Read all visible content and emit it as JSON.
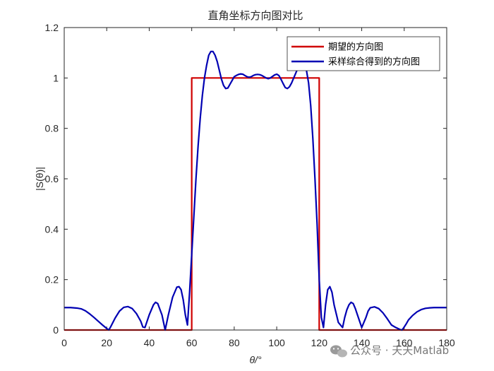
{
  "chart_data": {
    "type": "line",
    "title": "直角坐标方向图对比",
    "xlabel": "θ/°",
    "ylabel": "|S(θ)|",
    "xlim": [
      0,
      180
    ],
    "ylim": [
      0,
      1.2
    ],
    "xticks": [
      0,
      20,
      40,
      60,
      80,
      100,
      120,
      140,
      160,
      180
    ],
    "yticks": [
      0,
      0.2,
      0.4,
      0.6,
      0.8,
      1,
      1.2
    ],
    "xtick_labels": [
      "0",
      "20",
      "40",
      "60",
      "80",
      "100",
      "120",
      "140",
      "160",
      "180"
    ],
    "ytick_labels": [
      "0",
      "0.2",
      "0.4",
      "0.6",
      "0.8",
      "1",
      "1.2"
    ],
    "grid": false,
    "legend_position": "top-right",
    "series": [
      {
        "name": "期望的方向图",
        "color": "#d00000",
        "x": [
          0,
          59.5,
          60,
          60,
          120,
          120,
          120.5,
          180
        ],
        "y": [
          0,
          0,
          0,
          1,
          1,
          0,
          0,
          0
        ]
      },
      {
        "name": "采样综合得到的方向图",
        "color": "#0000b3",
        "x": [
          0,
          3,
          6,
          8,
          10,
          12,
          14,
          16,
          18,
          20,
          21,
          22,
          24,
          26,
          28,
          30,
          32,
          34,
          36,
          37,
          38,
          40,
          42,
          43,
          44,
          46,
          47.5,
          49,
          51,
          53,
          54,
          55,
          56,
          57,
          58,
          59,
          60,
          61,
          62,
          63,
          64,
          65,
          66,
          67,
          68,
          69,
          70,
          71,
          72,
          73,
          74,
          75,
          76,
          77,
          78,
          79,
          80,
          81,
          82,
          83,
          84,
          85,
          86,
          87,
          88,
          89,
          90,
          91,
          92,
          93,
          94,
          95,
          96,
          97,
          98,
          99,
          100,
          101,
          102,
          103,
          104,
          105,
          106,
          107,
          108,
          109,
          110,
          111,
          112,
          113,
          114,
          115,
          116,
          117,
          118,
          119,
          120,
          121,
          122,
          123,
          124,
          125,
          126,
          127,
          129,
          131,
          132,
          133,
          134,
          135,
          136,
          137,
          138,
          140,
          142,
          143,
          144,
          146,
          148,
          150,
          152,
          154,
          156,
          158,
          159,
          160,
          161,
          162,
          164,
          166,
          168,
          170,
          172,
          174,
          176,
          178,
          180
        ],
        "y": [
          0.089,
          0.089,
          0.087,
          0.084,
          0.076,
          0.064,
          0.05,
          0.035,
          0.02,
          0.006,
          0.0,
          0.015,
          0.048,
          0.075,
          0.09,
          0.093,
          0.085,
          0.065,
          0.035,
          0.012,
          0.01,
          0.06,
          0.1,
          0.11,
          0.105,
          0.06,
          0.0,
          0.06,
          0.13,
          0.17,
          0.172,
          0.16,
          0.12,
          0.06,
          0.02,
          0.15,
          0.3,
          0.45,
          0.6,
          0.73,
          0.84,
          0.93,
          1.0,
          1.05,
          1.09,
          1.105,
          1.105,
          1.09,
          1.065,
          1.03,
          0.995,
          0.97,
          0.958,
          0.96,
          0.975,
          0.99,
          1.005,
          1.01,
          1.014,
          1.016,
          1.015,
          1.01,
          1.005,
          1.003,
          1.005,
          1.01,
          1.013,
          1.014,
          1.013,
          1.01,
          1.005,
          1.0,
          0.997,
          1.0,
          1.006,
          1.012,
          1.015,
          1.01,
          0.995,
          0.978,
          0.962,
          0.958,
          0.965,
          0.98,
          1.0,
          1.02,
          1.04,
          1.055,
          1.062,
          1.055,
          1.03,
          0.98,
          0.89,
          0.76,
          0.6,
          0.42,
          0.2,
          0.05,
          0.01,
          0.1,
          0.16,
          0.172,
          0.15,
          0.1,
          0.03,
          0.01,
          0.05,
          0.08,
          0.1,
          0.11,
          0.105,
          0.085,
          0.06,
          0.01,
          0.05,
          0.075,
          0.088,
          0.092,
          0.085,
          0.068,
          0.045,
          0.02,
          0.01,
          0.002,
          0.0,
          0.012,
          0.025,
          0.04,
          0.058,
          0.072,
          0.081,
          0.086,
          0.088,
          0.089,
          0.089,
          0.089,
          0.089
        ]
      }
    ]
  },
  "watermark": {
    "icon": "wechat-icon",
    "text": "公众号 · 天天Matlab"
  }
}
